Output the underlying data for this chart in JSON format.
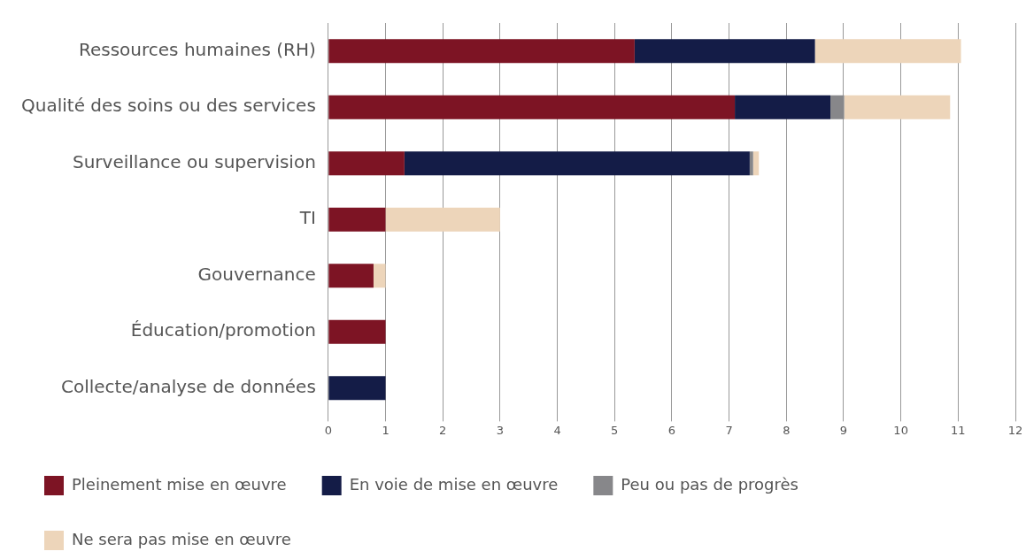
{
  "chart_data": {
    "type": "bar",
    "orientation": "horizontal",
    "stacked": true,
    "categories": [
      "Ressources humaines (RH)",
      "Qualité des soins ou des services",
      "Surveillance ou supervision",
      "TI",
      "Gouvernance",
      "Éducation/promotion",
      "Collecte/analyse de données"
    ],
    "series": [
      {
        "name": "Pleinement mise en œuvre",
        "color": "#7d1424",
        "values": [
          5.35,
          7.1,
          1.33,
          1,
          0.79,
          1,
          0
        ]
      },
      {
        "name": "En voie de mise en œuvre",
        "color": "#141c47",
        "values": [
          3.15,
          1.67,
          6.03,
          0,
          0,
          0,
          1
        ]
      },
      {
        "name": "Peu ou pas de progrès",
        "color": "#87878a",
        "values": [
          0,
          0.24,
          0.06,
          0,
          0,
          0,
          0
        ]
      },
      {
        "name": "Ne sera pas mise en œuvre",
        "color": "#edd5ba",
        "values": [
          2.55,
          1.85,
          0.1,
          2,
          0.21,
          0,
          0
        ]
      }
    ],
    "xlim": [
      0,
      12
    ],
    "xticks": [
      0,
      1,
      2,
      3,
      4,
      5,
      6,
      7,
      8,
      9,
      10,
      11,
      12
    ],
    "grid": "x",
    "legend": "bottom"
  }
}
